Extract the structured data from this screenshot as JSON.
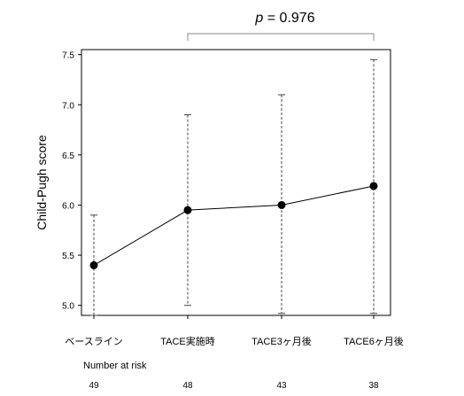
{
  "chart_data": {
    "type": "line",
    "ylabel": "Child-Pugh score",
    "xlabel": "",
    "categories": [
      "ベースライン",
      "TACE実施時",
      "TACE3ヶ月後",
      "TACE6ヶ月後"
    ],
    "values": [
      5.4,
      5.95,
      6.0,
      6.19
    ],
    "error_bars": {
      "upper": [
        5.9,
        6.9,
        7.1,
        7.45
      ],
      "lower": [
        4.9,
        5.0,
        4.92,
        4.92
      ]
    },
    "ylim": [
      4.9,
      7.55
    ],
    "y_ticks": [
      "5.0",
      "5.5",
      "6.0",
      "6.5",
      "7.0",
      "7.5"
    ],
    "annotation": {
      "p_label": "p",
      "p_value_text": " = 0.976",
      "from_category_index": 1,
      "to_category_index": 3
    },
    "risk_table": {
      "label": "Number at risk",
      "counts": [
        "49",
        "48",
        "43",
        "38"
      ]
    },
    "grid": false,
    "legend": "none"
  }
}
